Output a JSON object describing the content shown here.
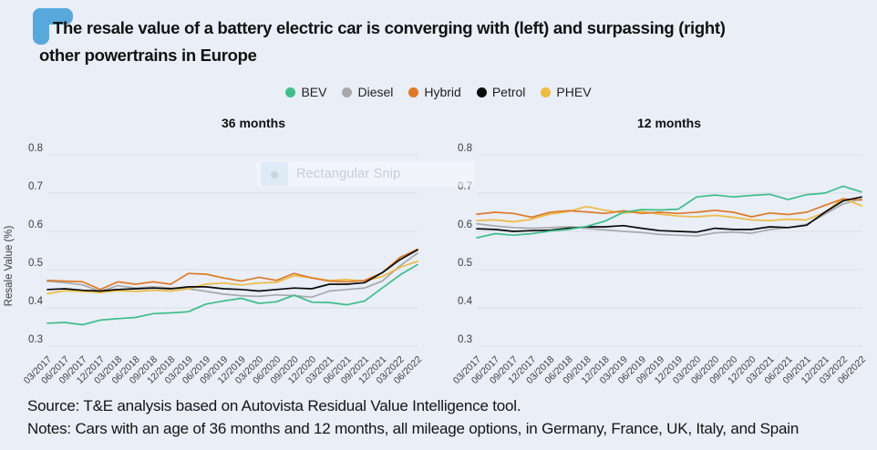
{
  "title": {
    "line1": "The resale value of a battery electric car is converging with (left) and surpassing (right)",
    "line2": "other powertrains in Europe"
  },
  "legend": {
    "items": [
      {
        "label": "BEV",
        "color": "#3fbd8a"
      },
      {
        "label": "Diesel",
        "color": "#a8a8aa"
      },
      {
        "label": "Hybrid",
        "color": "#dd7a28"
      },
      {
        "label": "Petrol",
        "color": "#0a0a0a"
      },
      {
        "label": "PHEV",
        "color": "#ecbb43"
      }
    ]
  },
  "overlay": {
    "label": "Rectangular Snip"
  },
  "chart_data": [
    {
      "type": "line",
      "title": "36 months",
      "xlabel": "",
      "ylabel": "Resale Value (%)",
      "ylim": [
        0.3,
        0.8
      ],
      "yticks": [
        0.3,
        0.4,
        0.5,
        0.6,
        0.7,
        0.8
      ],
      "grid": true,
      "categories": [
        "03/2017",
        "06/2017",
        "09/2017",
        "12/2017",
        "03/2018",
        "06/2018",
        "09/2018",
        "12/2018",
        "03/2019",
        "06/2019",
        "09/2019",
        "12/2019",
        "03/2020",
        "06/2020",
        "09/2020",
        "12/2020",
        "03/2021",
        "06/2021",
        "09/2021",
        "12/2021",
        "03/2022",
        "06/2022"
      ],
      "series": [
        {
          "name": "Diesel",
          "color": "#a8a8aa",
          "values": [
            0.47,
            0.466,
            0.46,
            0.443,
            0.458,
            0.452,
            0.455,
            0.452,
            0.45,
            0.443,
            0.436,
            0.432,
            0.43,
            0.434,
            0.432,
            0.428,
            0.444,
            0.448,
            0.452,
            0.47,
            0.51,
            0.543
          ]
        },
        {
          "name": "PHEV",
          "color": "#ecbb43",
          "values": [
            0.437,
            0.445,
            0.443,
            0.44,
            0.445,
            0.443,
            0.446,
            0.444,
            0.45,
            0.462,
            0.465,
            0.46,
            0.465,
            0.467,
            0.484,
            0.479,
            0.472,
            0.474,
            0.47,
            0.482,
            0.506,
            0.522
          ]
        },
        {
          "name": "Hybrid",
          "color": "#dd7a28",
          "values": [
            0.472,
            0.47,
            0.468,
            0.448,
            0.468,
            0.462,
            0.468,
            0.462,
            0.49,
            0.488,
            0.478,
            0.47,
            0.48,
            0.472,
            0.49,
            0.478,
            0.47,
            0.468,
            0.472,
            0.492,
            0.532,
            0.553
          ]
        },
        {
          "name": "Petrol",
          "color": "#0a0a0a",
          "values": [
            0.448,
            0.45,
            0.446,
            0.444,
            0.448,
            0.45,
            0.452,
            0.45,
            0.455,
            0.455,
            0.45,
            0.448,
            0.444,
            0.448,
            0.452,
            0.45,
            0.462,
            0.462,
            0.466,
            0.492,
            0.526,
            0.552
          ]
        },
        {
          "name": "BEV",
          "color": "#3fbd8a",
          "values": [
            0.36,
            0.362,
            0.356,
            0.368,
            0.372,
            0.375,
            0.385,
            0.387,
            0.39,
            0.41,
            0.418,
            0.425,
            0.412,
            0.416,
            0.433,
            0.415,
            0.414,
            0.408,
            0.418,
            0.452,
            0.486,
            0.513
          ]
        }
      ]
    },
    {
      "type": "line",
      "title": "12 months",
      "xlabel": "",
      "ylabel": "",
      "ylim": [
        0.3,
        0.8
      ],
      "yticks": [
        0.3,
        0.4,
        0.5,
        0.6,
        0.7,
        0.8
      ],
      "grid": true,
      "categories": [
        "03/2017",
        "06/2017",
        "09/2017",
        "12/2017",
        "03/2018",
        "06/2018",
        "09/2018",
        "12/2018",
        "03/2019",
        "06/2019",
        "09/2019",
        "12/2019",
        "03/2020",
        "06/2020",
        "09/2020",
        "12/2020",
        "03/2021",
        "06/2021",
        "09/2021",
        "12/2021",
        "03/2022",
        "06/2022"
      ],
      "series": [
        {
          "name": "Diesel",
          "color": "#a8a8aa",
          "values": [
            0.62,
            0.614,
            0.61,
            0.608,
            0.61,
            0.612,
            0.608,
            0.604,
            0.6,
            0.597,
            0.592,
            0.59,
            0.588,
            0.596,
            0.598,
            0.595,
            0.605,
            0.61,
            0.618,
            0.645,
            0.672,
            0.685
          ]
        },
        {
          "name": "PHEV",
          "color": "#ecbb43",
          "values": [
            0.628,
            0.63,
            0.625,
            0.632,
            0.645,
            0.652,
            0.665,
            0.655,
            0.648,
            0.652,
            0.645,
            0.64,
            0.638,
            0.642,
            0.637,
            0.63,
            0.628,
            0.632,
            0.63,
            0.65,
            0.686,
            0.667
          ]
        },
        {
          "name": "Hybrid",
          "color": "#dd7a28",
          "values": [
            0.645,
            0.65,
            0.647,
            0.637,
            0.65,
            0.654,
            0.651,
            0.647,
            0.654,
            0.647,
            0.65,
            0.647,
            0.65,
            0.655,
            0.65,
            0.638,
            0.648,
            0.644,
            0.65,
            0.668,
            0.685,
            0.682
          ]
        },
        {
          "name": "Petrol",
          "color": "#0a0a0a",
          "values": [
            0.607,
            0.605,
            0.6,
            0.602,
            0.603,
            0.608,
            0.612,
            0.612,
            0.615,
            0.608,
            0.602,
            0.6,
            0.598,
            0.608,
            0.605,
            0.605,
            0.612,
            0.61,
            0.616,
            0.65,
            0.68,
            0.69
          ]
        },
        {
          "name": "BEV",
          "color": "#3fbd8a",
          "values": [
            0.583,
            0.594,
            0.59,
            0.594,
            0.601,
            0.605,
            0.613,
            0.627,
            0.65,
            0.657,
            0.656,
            0.658,
            0.69,
            0.695,
            0.69,
            0.694,
            0.697,
            0.683,
            0.696,
            0.7,
            0.718,
            0.703
          ]
        }
      ]
    }
  ],
  "footer": {
    "source": "Source: T&E analysis based on Autovista Residual Value Intelligence tool.",
    "notes": "Notes: Cars with an age of 36 months and 12 months, all mileage options, in Germany, France, UK, Italy, and Spain"
  }
}
